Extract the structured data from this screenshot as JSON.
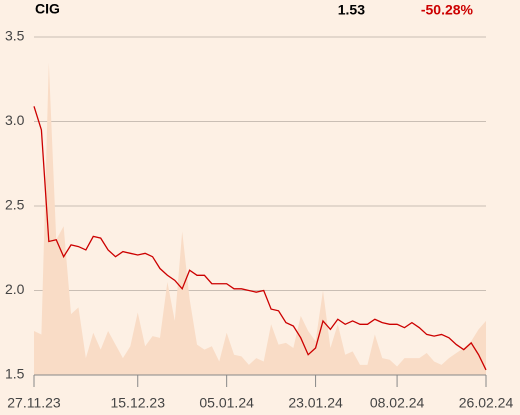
{
  "header": {
    "symbol": "CIG",
    "price": "1.53",
    "change": "-50.28%"
  },
  "chart_data": {
    "type": "line",
    "categories": [
      "27.11.23",
      null,
      null,
      null,
      null,
      null,
      null,
      null,
      null,
      null,
      null,
      null,
      null,
      null,
      "15.12.23",
      null,
      null,
      null,
      null,
      null,
      null,
      null,
      null,
      null,
      null,
      null,
      "05.01.24",
      null,
      null,
      null,
      null,
      null,
      null,
      null,
      null,
      null,
      null,
      null,
      "23.01.24",
      null,
      null,
      null,
      null,
      null,
      null,
      null,
      null,
      null,
      null,
      "08.02.24",
      null,
      null,
      null,
      null,
      null,
      null,
      null,
      null,
      null,
      null,
      null,
      "26.02.24"
    ],
    "series": [
      {
        "type": "area",
        "color": "#f9dcc6",
        "values": [
          1.76,
          1.74,
          3.35,
          2.3,
          2.38,
          1.86,
          1.9,
          1.6,
          1.75,
          1.65,
          1.76,
          1.68,
          1.6,
          1.67,
          1.87,
          1.67,
          1.73,
          1.72,
          2.05,
          1.82,
          2.35,
          1.95,
          1.68,
          1.65,
          1.67,
          1.58,
          1.75,
          1.62,
          1.61,
          1.56,
          1.6,
          1.58,
          1.8,
          1.68,
          1.69,
          1.66,
          1.85,
          1.76,
          1.7,
          2.0,
          1.66,
          1.8,
          1.62,
          1.64,
          1.56,
          1.56,
          1.74,
          1.6,
          1.59,
          1.55,
          1.6,
          1.6,
          1.6,
          1.63,
          1.58,
          1.56,
          1.6,
          1.63,
          1.66,
          1.7,
          1.77,
          1.82
        ]
      },
      {
        "type": "line",
        "color": "#cc0000",
        "values": [
          3.09,
          2.95,
          2.29,
          2.3,
          2.2,
          2.27,
          2.26,
          2.24,
          2.32,
          2.31,
          2.24,
          2.2,
          2.23,
          2.22,
          2.21,
          2.22,
          2.2,
          2.13,
          2.09,
          2.06,
          2.01,
          2.12,
          2.09,
          2.09,
          2.04,
          2.04,
          2.04,
          2.01,
          2.01,
          2.0,
          1.99,
          2.0,
          1.89,
          1.88,
          1.81,
          1.79,
          1.72,
          1.62,
          1.66,
          1.82,
          1.77,
          1.83,
          1.8,
          1.82,
          1.8,
          1.8,
          1.83,
          1.81,
          1.8,
          1.8,
          1.78,
          1.81,
          1.78,
          1.74,
          1.73,
          1.74,
          1.72,
          1.68,
          1.65,
          1.69,
          1.62,
          1.53
        ]
      }
    ],
    "ylim": [
      1.5,
      3.5
    ],
    "yticks": [
      1.5,
      {
        "value": 2,
        "label": "2.0"
      },
      2.5,
      {
        "value": 3,
        "label": "3.0"
      },
      3.5
    ],
    "grid": true
  }
}
